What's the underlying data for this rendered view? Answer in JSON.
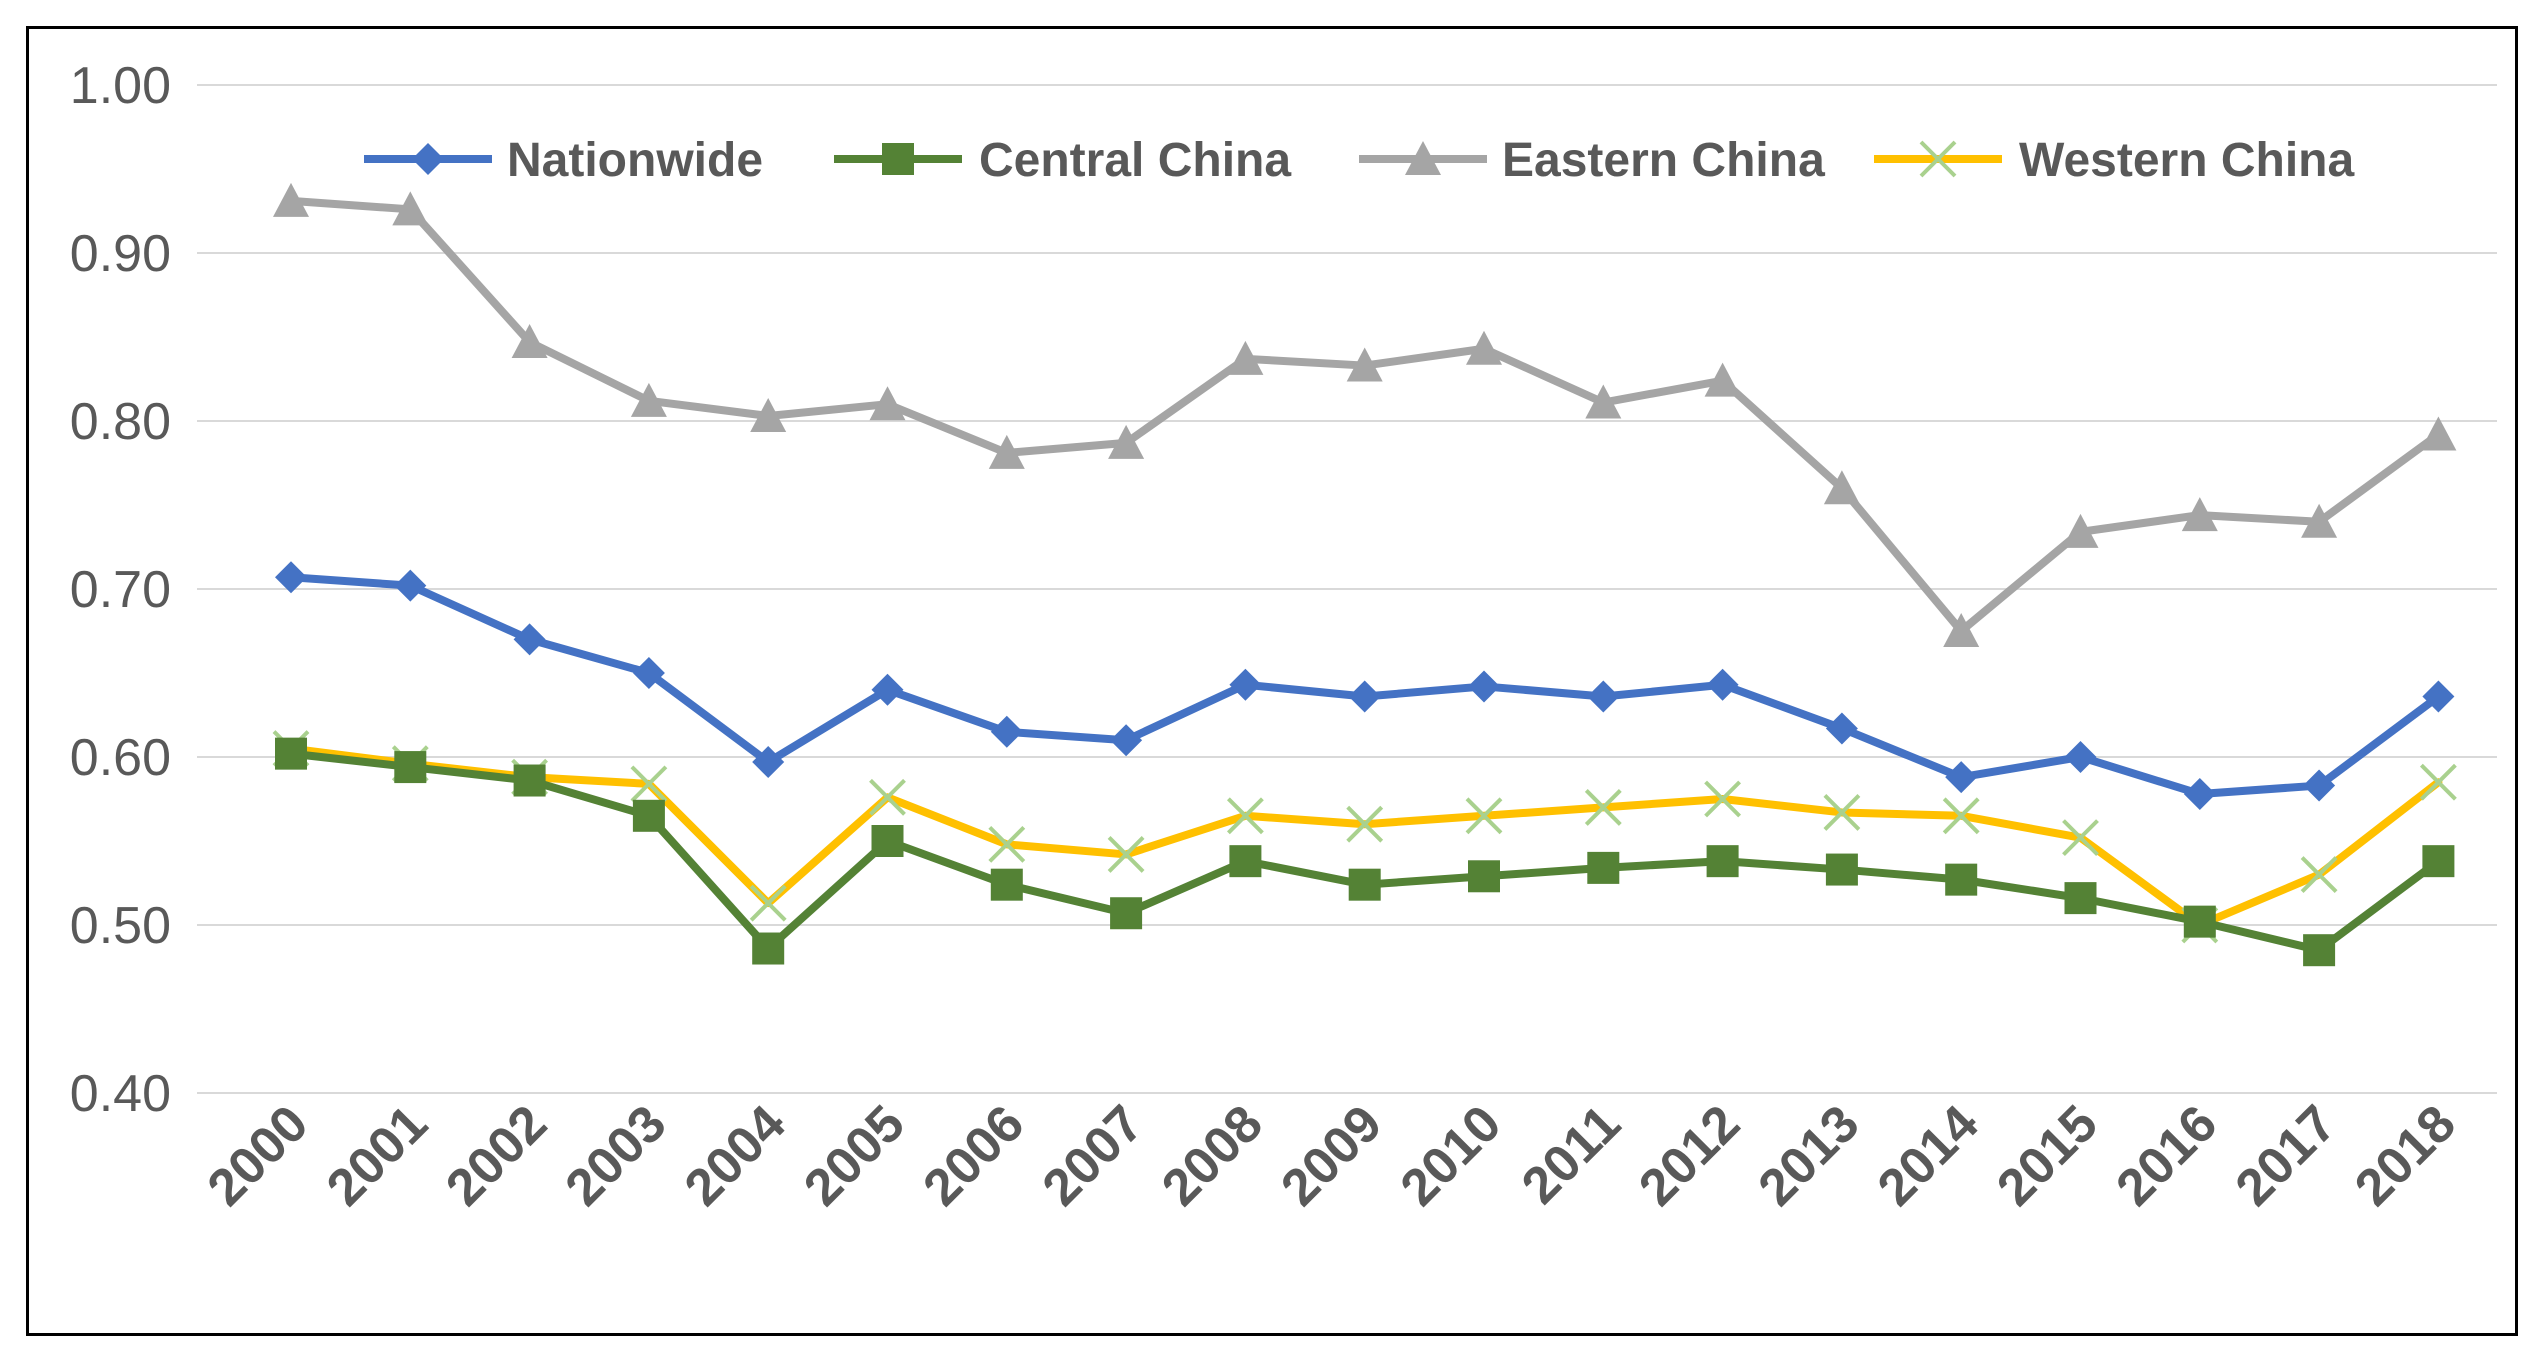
{
  "chart_data": {
    "type": "line",
    "title": "",
    "xlabel": "",
    "ylabel": "",
    "ylim": [
      0.4,
      1.0
    ],
    "yticks": [
      "0.40",
      "0.50",
      "0.60",
      "0.70",
      "0.80",
      "0.90",
      "1.00"
    ],
    "grid": true,
    "legend_position": "top",
    "categories": [
      "2000",
      "2001",
      "2002",
      "2003",
      "2004",
      "2005",
      "2006",
      "2007",
      "2008",
      "2009",
      "2010",
      "2011",
      "2012",
      "2013",
      "2014",
      "2015",
      "2016",
      "2017",
      "2018"
    ],
    "series": [
      {
        "name": "Nationwide",
        "color": "#4472C4",
        "marker": "diamond",
        "values": [
          0.707,
          0.702,
          0.67,
          0.65,
          0.597,
          0.64,
          0.615,
          0.61,
          0.643,
          0.636,
          0.642,
          0.636,
          0.643,
          0.617,
          0.588,
          0.6,
          0.578,
          0.583,
          0.636
        ]
      },
      {
        "name": "Central China",
        "color": "#548235",
        "marker": "square",
        "values": [
          0.602,
          0.594,
          0.586,
          0.565,
          0.486,
          0.55,
          0.524,
          0.507,
          0.538,
          0.524,
          0.529,
          0.534,
          0.538,
          0.533,
          0.527,
          0.516,
          0.502,
          0.485,
          0.538
        ]
      },
      {
        "name": "Eastern China",
        "color": "#A5A5A5",
        "marker": "triangle",
        "values": [
          0.931,
          0.926,
          0.847,
          0.812,
          0.803,
          0.81,
          0.781,
          0.787,
          0.837,
          0.833,
          0.843,
          0.811,
          0.824,
          0.76,
          0.675,
          0.734,
          0.744,
          0.74,
          0.792
        ]
      },
      {
        "name": "Western China",
        "color": "#FFC000",
        "marker": "x",
        "markerColor": "#A9D18E",
        "values": [
          0.605,
          0.596,
          0.588,
          0.584,
          0.513,
          0.576,
          0.548,
          0.542,
          0.565,
          0.56,
          0.565,
          0.57,
          0.575,
          0.567,
          0.565,
          0.552,
          0.5,
          0.53,
          0.585
        ]
      }
    ]
  }
}
